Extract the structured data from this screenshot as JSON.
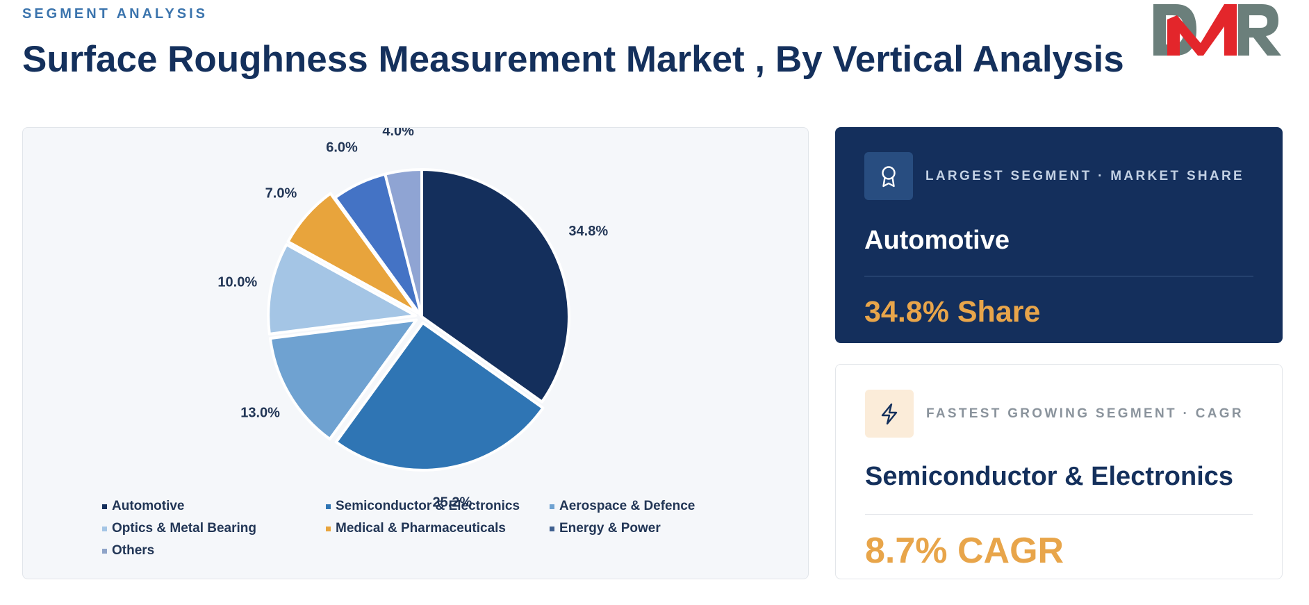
{
  "header": {
    "eyebrow": "SEGMENT ANALYSIS",
    "title": "Surface Roughness Measurement Market , By Vertical Analysis"
  },
  "logo": {
    "text": "DMR",
    "colors": {
      "d": "#6b7f7b",
      "m": "#e3262b",
      "r": "#6b7f7b"
    }
  },
  "chart_data": {
    "type": "pie",
    "categories": [
      "Automotive",
      "Semiconductor & Electronics",
      "Aerospace & Defence",
      "Optics & Metal Bearing",
      "Medical & Pharmaceuticals",
      "Energy & Power",
      "Others"
    ],
    "values": [
      34.8,
      25.2,
      13.0,
      10.0,
      7.0,
      6.0,
      4.0
    ],
    "labels": [
      "34.8%",
      "25.2%",
      "13.0%",
      "10.0%",
      "7.0%",
      "6.0%",
      "4.0%"
    ],
    "colors": [
      "#142f5c",
      "#2f75b4",
      "#6fa2d1",
      "#a4c5e5",
      "#e8a43c",
      "#4473c5",
      "#8fa4d3"
    ],
    "legend_swatch_colors": [
      "#142f5c",
      "#2f75b4",
      "#6fa2d1",
      "#a4c5e5",
      "#e8a43c",
      "#3f5f8f",
      "#8fa4c8"
    ],
    "exploded": [
      "Semiconductor & Electronics",
      "Aerospace & Defence",
      "Optics & Metal Bearing",
      "Medical & Pharmaceuticals"
    ],
    "start_angle": "12 o'clock, clockwise",
    "legend_position": "bottom"
  },
  "cards": {
    "largest": {
      "icon": "award-icon",
      "label": "LARGEST SEGMENT  ·  MARKET SHARE",
      "value": "Automotive",
      "metric": "34.8% Share"
    },
    "fastest": {
      "icon": "lightning-icon",
      "label": "FASTEST GROWING SEGMENT  ·  CAGR",
      "value": "Semiconductor & Electronics",
      "metric": "8.7% CAGR"
    }
  }
}
